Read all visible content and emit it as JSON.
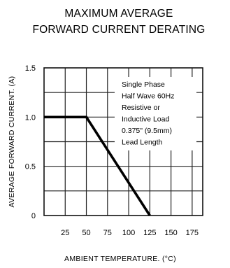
{
  "chart_data": {
    "type": "line",
    "title_lines": [
      "MAXIMUM AVERAGE",
      "FORWARD CURRENT DERATING"
    ],
    "xlabel": "AMBIENT TEMPERATURE. (°C)",
    "ylabel": "AVERAGE FORWARD CURRENT. (A)",
    "x_ticks": [
      25,
      50,
      75,
      100,
      125,
      150,
      175
    ],
    "y_ticks": [
      0,
      0.5,
      1.0,
      1.5
    ],
    "y_tick_labels": [
      "0",
      "0.5",
      "1.0",
      "1.5"
    ],
    "xlim": [
      0,
      187.5
    ],
    "ylim": [
      0,
      1.5
    ],
    "grid": true,
    "series": [
      {
        "x": [
          0,
          50,
          125
        ],
        "y": [
          1.0,
          1.0,
          0
        ]
      }
    ],
    "annotation_lines": [
      "Single Phase",
      "Half Wave 60Hz",
      "Resistive or",
      "Inductive Load",
      "0.375\" (9.5mm)",
      "Lead Length"
    ]
  }
}
